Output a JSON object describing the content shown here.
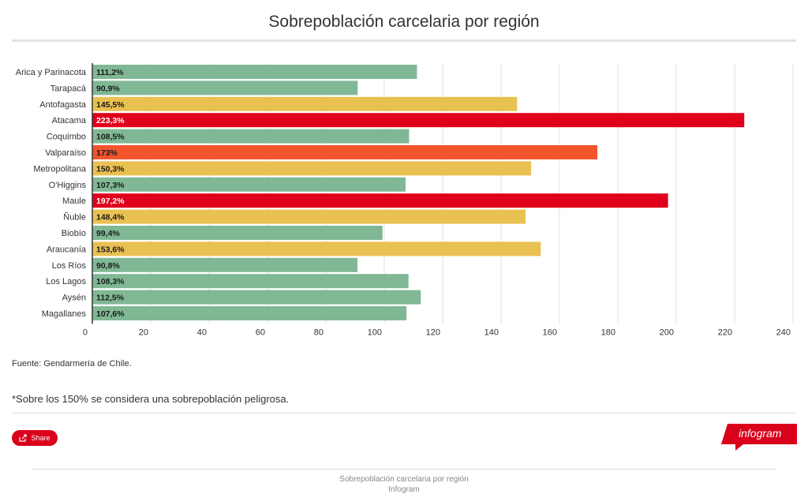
{
  "page": {
    "title": "Sobrepoblación carcelaria por región",
    "source": "Fuente: Gendarmería de Chile.",
    "note": "*Sobre los 150% se considera una sobrepoblación peligrosa.",
    "share_label": "Share",
    "brand": "infogram",
    "footer_title": "Sobrepoblación carcelaria por región",
    "footer_sub": "Infogram"
  },
  "colors": {
    "green": "#80b895",
    "yellow": "#e9c152",
    "orange": "#f2552c",
    "red": "#e0001b",
    "accent": "#d9001b"
  },
  "chart_data": {
    "type": "bar",
    "orientation": "horizontal",
    "title": "Sobrepoblación carcelaria por región",
    "categories": [
      "Arica y Parinacota",
      "Tarapacá",
      "Antofagasta",
      "Atacama",
      "Coquimbo",
      "Valparaíso",
      "Metropolitana",
      "O'Higgins",
      "Maule",
      "Ñuble",
      "Biobío",
      "Araucanía",
      "Los Ríos",
      "Los Lagos",
      "Aysén",
      "Magallanes"
    ],
    "values": [
      111.2,
      90.9,
      145.5,
      223.3,
      108.5,
      173,
      150.3,
      107.3,
      197.2,
      148.4,
      99.4,
      153.6,
      90.8,
      108.3,
      112.5,
      107.6
    ],
    "labels": [
      "111,2%",
      "90,9%",
      "145,5%",
      "223,3%",
      "108,5%",
      "173%",
      "150,3%",
      "107,3%",
      "197,2%",
      "148,4%",
      "99,4%",
      "153,6%",
      "90,8%",
      "108,3%",
      "112,5%",
      "107,6%"
    ],
    "color_keys": [
      "green",
      "green",
      "yellow",
      "red",
      "green",
      "orange",
      "yellow",
      "green",
      "red",
      "yellow",
      "green",
      "yellow",
      "green",
      "green",
      "green",
      "green"
    ],
    "xlim": [
      0,
      240
    ],
    "xticks": [
      "0",
      "20",
      "40",
      "60",
      "80",
      "100",
      "120",
      "140",
      "160",
      "180",
      "200",
      "220",
      "240"
    ],
    "grid": true
  }
}
